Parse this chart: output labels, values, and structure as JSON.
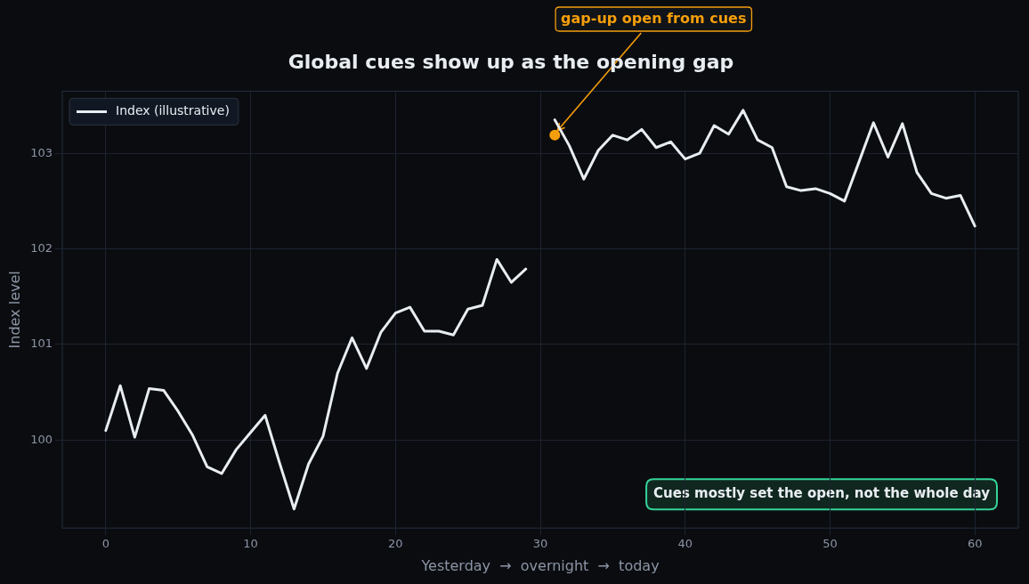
{
  "chart_data": {
    "type": "line",
    "title": "Global cues show up as the opening gap",
    "xlabel": "Yesterday  →  overnight  →  today",
    "ylabel": "Index level",
    "x": [
      0,
      1,
      2,
      3,
      4,
      5,
      6,
      7,
      8,
      9,
      10,
      11,
      12,
      13,
      14,
      15,
      16,
      17,
      18,
      19,
      20,
      21,
      22,
      23,
      24,
      25,
      26,
      27,
      28,
      29,
      30,
      31,
      32,
      33,
      34,
      35,
      36,
      37,
      38,
      39,
      40,
      41,
      42,
      43,
      44,
      45,
      46,
      47,
      48,
      49,
      50,
      51,
      52,
      53,
      54,
      55,
      56,
      57,
      58,
      59,
      60
    ],
    "series": [
      {
        "name": "Index (illustrative)",
        "color": "#e8edf2",
        "values": [
          100.1,
          100.57,
          100.03,
          100.54,
          100.52,
          100.3,
          100.05,
          99.72,
          99.65,
          99.9,
          100.08,
          100.26,
          99.76,
          99.28,
          99.75,
          100.04,
          100.7,
          101.07,
          100.75,
          101.13,
          101.33,
          101.39,
          101.14,
          101.14,
          101.1,
          101.37,
          101.41,
          101.89,
          101.65,
          101.79,
          null,
          103.35,
          103.08,
          102.73,
          103.03,
          103.19,
          103.14,
          103.25,
          103.06,
          103.12,
          102.94,
          103.0,
          103.29,
          103.2,
          103.45,
          103.14,
          103.06,
          102.65,
          102.61,
          102.63,
          102.58,
          102.5,
          102.91,
          103.32,
          102.96,
          103.31,
          102.8,
          102.58,
          102.53,
          102.56,
          102.24
        ]
      },
      {
        "type": "scatter",
        "color": "#f59e0b",
        "marker": "circle",
        "x": [
          31
        ],
        "values": [
          103.19
        ]
      }
    ],
    "xlim": [
      -3,
      63
    ],
    "ylim": [
      99.08,
      103.65
    ],
    "xticks": [
      0,
      10,
      20,
      30,
      40,
      50,
      60
    ],
    "yticks": [
      100,
      101,
      102,
      103
    ],
    "grid": true,
    "legend": "top left",
    "line_style": "solid",
    "marker": "none",
    "annotations": [
      {
        "text": "gap-up open from cues",
        "x": 31,
        "y": 103.19
      },
      "Cues mostly set the open, not the whole day"
    ]
  }
}
